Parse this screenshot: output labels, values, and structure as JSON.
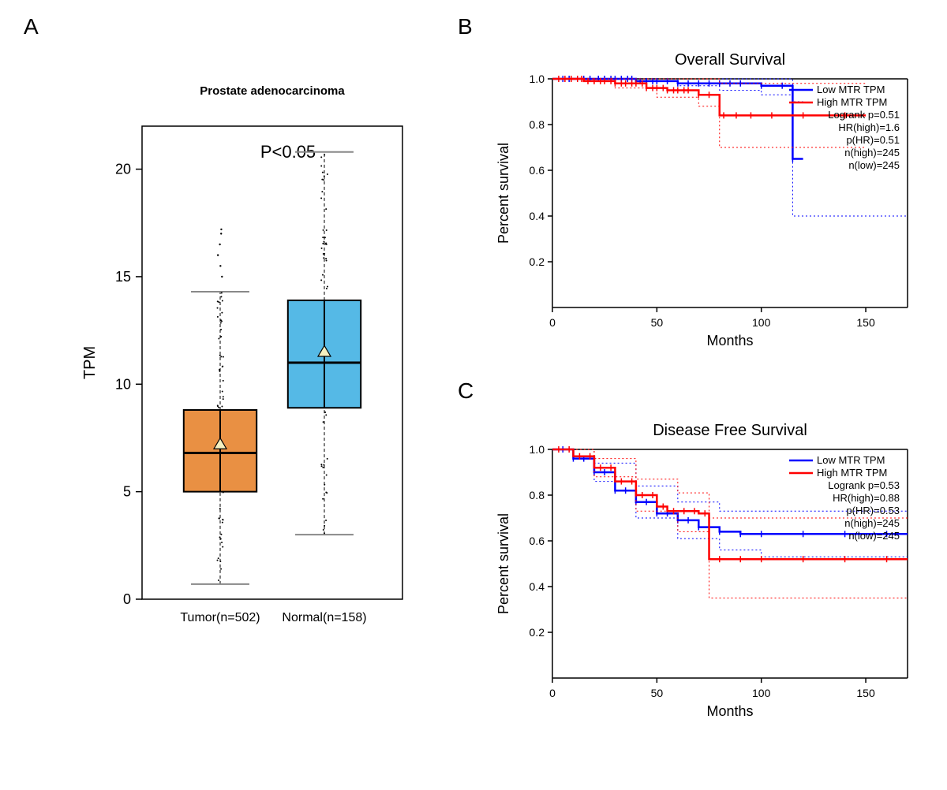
{
  "panelA": {
    "label": "A",
    "title": "Prostate adenocarcinoma",
    "title_fontsize": 15,
    "pvalue_text": "P<0.05",
    "pvalue_fontsize": 22,
    "ylabel": "TPM",
    "ylabel_fontsize": 20,
    "ylim": [
      0,
      22
    ],
    "yticks": [
      0,
      5,
      10,
      15,
      20
    ],
    "background_color": "#ffffff",
    "frame_color": "#000000",
    "axis_lw": 1.5,
    "boxes": [
      {
        "xlabel": "Tumor(n=502)",
        "x": 0.3,
        "median": 6.8,
        "q1": 5.0,
        "q3": 8.8,
        "whisker_low": 0.7,
        "whisker_high": 14.3,
        "mean": 7.2,
        "fill": "#e99043",
        "border": "#000000",
        "box_lw": 2,
        "outliers": [
          15.0,
          15.5,
          16.0,
          16.5,
          17.0,
          17.2
        ]
      },
      {
        "xlabel": "Normal(n=158)",
        "x": 0.7,
        "median": 11.0,
        "q1": 8.9,
        "q3": 13.9,
        "whisker_low": 3.0,
        "whisker_high": 20.8,
        "mean": 11.5,
        "fill": "#55b9e6",
        "border": "#000000",
        "box_lw": 2,
        "outliers": []
      }
    ],
    "xtick_fontsize": 16,
    "mean_marker": "triangle",
    "mean_marker_fill": "#f5f0c0",
    "mean_marker_stroke": "#000000",
    "whisker_cap_color": "#888888",
    "jitter": {
      "show": true,
      "n_per_box": 60,
      "dot_color": "#000000",
      "dot_r": 1
    }
  },
  "panelB": {
    "label": "B",
    "title": "Overall Survival",
    "title_fontsize": 20,
    "xlabel": "Months",
    "ylabel": "Percent survival",
    "label_fontsize": 18,
    "xlim": [
      0,
      170
    ],
    "ylim": [
      0.0,
      1.0
    ],
    "xticks": [
      0,
      50,
      100,
      150
    ],
    "yticks": [
      0.2,
      0.4,
      0.6,
      0.8,
      1.0
    ],
    "background_color": "#ffffff",
    "grid": false,
    "line_width": 2.5,
    "dotted_width": 1,
    "legend_items": [
      {
        "label": "Low MTR TPM",
        "color": "#0000ff"
      },
      {
        "label": "High MTR TPM",
        "color": "#ff0000"
      }
    ],
    "stats_lines": [
      "Logrank p=0.51",
      "HR(high)=1.6",
      "p(HR)=0.51",
      "n(high)=245",
      "n(low)=245"
    ],
    "stats_fontsize": 13,
    "curves": {
      "low": {
        "color": "#0000ff",
        "points": [
          [
            0,
            1.0
          ],
          [
            20,
            1.0
          ],
          [
            40,
            0.99
          ],
          [
            60,
            0.98
          ],
          [
            80,
            0.98
          ],
          [
            100,
            0.97
          ],
          [
            115,
            0.97
          ],
          [
            115,
            0.65
          ],
          [
            120,
            0.65
          ]
        ],
        "ci_up": [
          [
            0,
            1.0
          ],
          [
            115,
            1.0
          ],
          [
            115,
            0.9
          ],
          [
            120,
            0.9
          ]
        ],
        "ci_lo": [
          [
            0,
            1.0
          ],
          [
            60,
            0.97
          ],
          [
            80,
            0.95
          ],
          [
            100,
            0.93
          ],
          [
            115,
            0.92
          ],
          [
            115,
            0.4
          ],
          [
            170,
            0.4
          ]
        ],
        "censor_x": [
          5,
          8,
          12,
          15,
          18,
          22,
          25,
          28,
          30,
          33,
          36,
          38,
          40,
          42,
          45,
          48,
          50,
          55,
          60,
          65,
          70,
          75,
          80,
          85,
          90,
          100,
          110,
          115
        ]
      },
      "high": {
        "color": "#ff0000",
        "points": [
          [
            0,
            1.0
          ],
          [
            15,
            0.99
          ],
          [
            30,
            0.98
          ],
          [
            45,
            0.96
          ],
          [
            55,
            0.95
          ],
          [
            70,
            0.93
          ],
          [
            80,
            0.92
          ],
          [
            80,
            0.84
          ],
          [
            110,
            0.84
          ],
          [
            150,
            0.84
          ]
        ],
        "ci_up": [
          [
            0,
            1.0
          ],
          [
            60,
            1.0
          ],
          [
            80,
            0.98
          ],
          [
            150,
            0.98
          ]
        ],
        "ci_lo": [
          [
            0,
            1.0
          ],
          [
            30,
            0.96
          ],
          [
            50,
            0.92
          ],
          [
            70,
            0.88
          ],
          [
            80,
            0.85
          ],
          [
            80,
            0.7
          ],
          [
            150,
            0.7
          ]
        ],
        "censor_x": [
          3,
          6,
          9,
          12,
          14,
          17,
          20,
          23,
          25,
          28,
          30,
          33,
          35,
          38,
          40,
          43,
          45,
          48,
          50,
          53,
          55,
          58,
          60,
          63,
          65,
          70,
          75,
          82,
          88,
          95,
          105,
          120,
          140
        ]
      }
    }
  },
  "panelC": {
    "label": "C",
    "title": "Disease Free Survival",
    "title_fontsize": 20,
    "xlabel": "Months",
    "ylabel": "Percent survival",
    "label_fontsize": 18,
    "xlim": [
      0,
      170
    ],
    "ylim": [
      0.0,
      1.0
    ],
    "xticks": [
      0,
      50,
      100,
      150
    ],
    "yticks": [
      0.2,
      0.4,
      0.6,
      0.8,
      1.0
    ],
    "background_color": "#ffffff",
    "grid": false,
    "line_width": 2.5,
    "dotted_width": 1,
    "legend_items": [
      {
        "label": "Low MTR TPM",
        "color": "#0000ff"
      },
      {
        "label": "High MTR TPM",
        "color": "#ff0000"
      }
    ],
    "stats_lines": [
      "Logrank p=0.53",
      "HR(high)=0.88",
      "p(HR)=0.53",
      "n(high)=245",
      "n(low)=245"
    ],
    "stats_fontsize": 13,
    "curves": {
      "low": {
        "color": "#0000ff",
        "points": [
          [
            0,
            1.0
          ],
          [
            10,
            0.96
          ],
          [
            20,
            0.9
          ],
          [
            30,
            0.82
          ],
          [
            40,
            0.77
          ],
          [
            50,
            0.72
          ],
          [
            60,
            0.69
          ],
          [
            70,
            0.66
          ],
          [
            80,
            0.64
          ],
          [
            90,
            0.63
          ],
          [
            170,
            0.63
          ]
        ],
        "ci_up": [
          [
            0,
            1.0
          ],
          [
            20,
            0.94
          ],
          [
            40,
            0.84
          ],
          [
            60,
            0.77
          ],
          [
            80,
            0.73
          ],
          [
            100,
            0.73
          ],
          [
            170,
            0.73
          ]
        ],
        "ci_lo": [
          [
            0,
            1.0
          ],
          [
            20,
            0.86
          ],
          [
            40,
            0.7
          ],
          [
            60,
            0.61
          ],
          [
            80,
            0.56
          ],
          [
            100,
            0.53
          ],
          [
            170,
            0.53
          ]
        ],
        "censor_x": [
          5,
          10,
          15,
          20,
          25,
          30,
          35,
          40,
          45,
          50,
          55,
          60,
          65,
          70,
          75,
          80,
          90,
          100,
          120,
          140,
          160
        ]
      },
      "high": {
        "color": "#ff0000",
        "points": [
          [
            0,
            1.0
          ],
          [
            10,
            0.97
          ],
          [
            20,
            0.92
          ],
          [
            30,
            0.86
          ],
          [
            40,
            0.8
          ],
          [
            50,
            0.75
          ],
          [
            55,
            0.73
          ],
          [
            60,
            0.73
          ],
          [
            70,
            0.72
          ],
          [
            75,
            0.72
          ],
          [
            75,
            0.52
          ],
          [
            170,
            0.52
          ]
        ],
        "ci_up": [
          [
            0,
            1.0
          ],
          [
            20,
            0.96
          ],
          [
            40,
            0.87
          ],
          [
            60,
            0.81
          ],
          [
            75,
            0.8
          ],
          [
            75,
            0.7
          ],
          [
            170,
            0.7
          ]
        ],
        "ci_lo": [
          [
            0,
            1.0
          ],
          [
            20,
            0.88
          ],
          [
            40,
            0.73
          ],
          [
            60,
            0.64
          ],
          [
            75,
            0.62
          ],
          [
            75,
            0.35
          ],
          [
            170,
            0.35
          ]
        ],
        "censor_x": [
          3,
          8,
          13,
          18,
          23,
          28,
          33,
          38,
          43,
          48,
          53,
          58,
          63,
          68,
          73,
          80,
          90,
          100,
          120,
          140,
          160
        ]
      }
    }
  }
}
